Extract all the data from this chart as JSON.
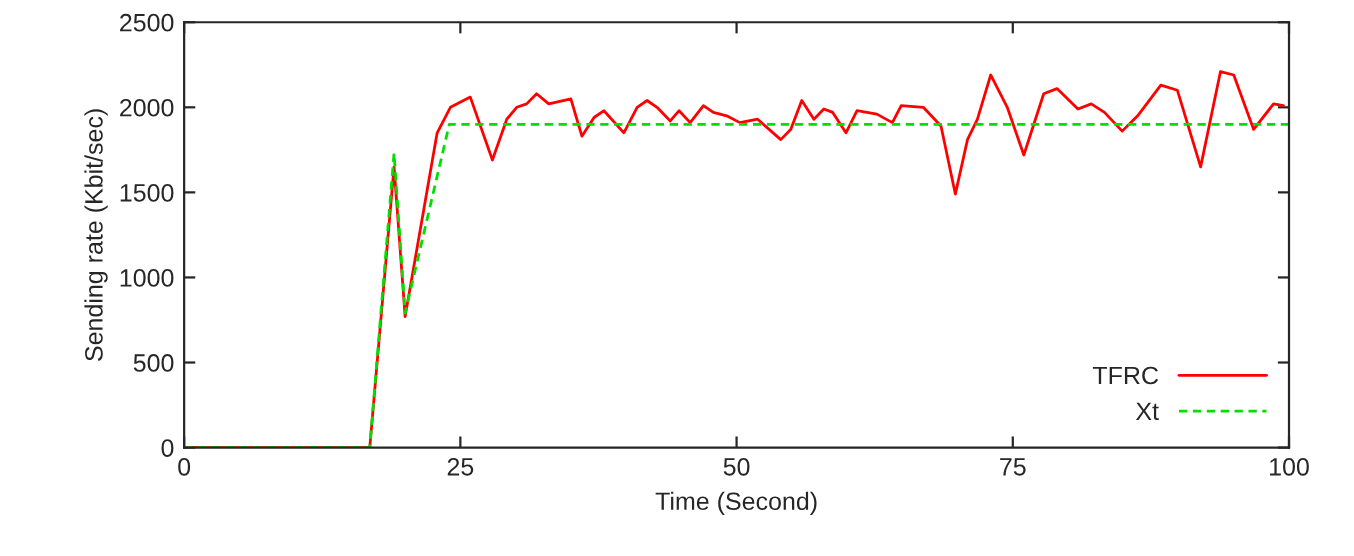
{
  "chart_data": {
    "type": "line",
    "xlabel": "Time (Second)",
    "ylabel": "Sending rate (Kbit/sec)",
    "xlim": [
      0,
      100
    ],
    "xticks": [
      0,
      25,
      50,
      75,
      100
    ],
    "ylim": [
      0,
      2500
    ],
    "yticks": [
      0,
      500,
      1000,
      1500,
      2000,
      2500
    ],
    "grid": false,
    "legend": "bottom right",
    "marker": "none",
    "series": [
      {
        "name": "TFRC",
        "color": "#ff0000",
        "line_style": "solid",
        "x": [
          0,
          16.8,
          19.0,
          20.0,
          22.9,
          24.1,
          25.9,
          27.9,
          29.2,
          30.1,
          31.0,
          31.9,
          33.0,
          35.0,
          36.0,
          37.1,
          38.0,
          39.8,
          41.0,
          41.9,
          42.8,
          44.0,
          44.8,
          45.8,
          47.0,
          47.9,
          49.1,
          50.3,
          51.9,
          54.0,
          54.9,
          55.9,
          57.0,
          57.9,
          58.7,
          59.9,
          60.9,
          62.7,
          64.1,
          64.9,
          66.9,
          68.5,
          69.8,
          70.9,
          71.8,
          73.0,
          74.5,
          76.0,
          77.8,
          79.0,
          80.9,
          82.1,
          83.3,
          84.9,
          86.3,
          88.4,
          89.9,
          92.0,
          93.8,
          95.0,
          96.8,
          98.6,
          99.5
        ],
        "values": [
          0,
          0,
          1650,
          770,
          1850,
          2000,
          2060,
          1690,
          1930,
          2000,
          2020,
          2080,
          2020,
          2050,
          1830,
          1940,
          1980,
          1850,
          2000,
          2040,
          2000,
          1920,
          1980,
          1910,
          2010,
          1970,
          1950,
          1910,
          1930,
          1810,
          1870,
          2040,
          1930,
          1990,
          1970,
          1850,
          1980,
          1960,
          1910,
          2010,
          2000,
          1890,
          1490,
          1810,
          1930,
          2190,
          2000,
          1720,
          2080,
          2110,
          1990,
          2020,
          1970,
          1860,
          1950,
          2130,
          2100,
          1650,
          2210,
          2190,
          1870,
          2020,
          2010
        ]
      },
      {
        "name": "Xt",
        "color": "#00e000",
        "line_style": "dashed",
        "x": [
          0,
          16.8,
          19.0,
          20.0,
          24.0,
          100
        ],
        "values": [
          0,
          0,
          1730,
          790,
          1900,
          1900
        ]
      }
    ]
  }
}
